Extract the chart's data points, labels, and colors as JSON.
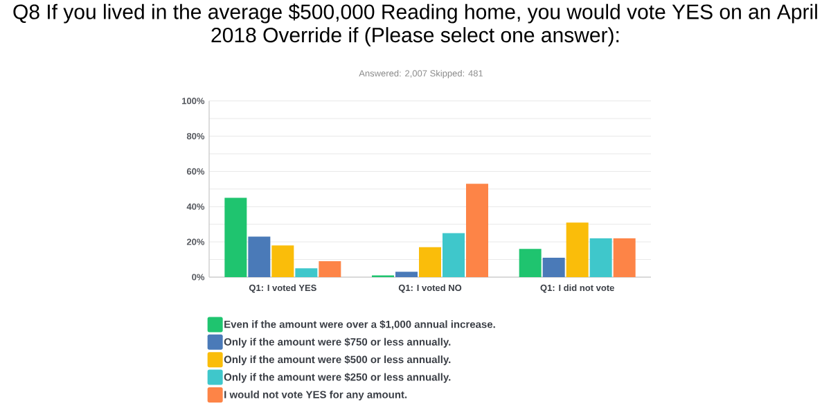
{
  "chart_data": {
    "type": "bar",
    "title": "Q8 If you lived in the average $500,000 Reading home, you would vote YES on an April 2018 Override if (Please select one answer):",
    "subtitle": "Answered: 2,007 Skipped: 481",
    "categories": [
      "Q1: I voted YES",
      "Q1: I voted NO",
      "Q1: I did not vote"
    ],
    "series": [
      {
        "name": "Even if the amount were over a $1,000 annual increase.",
        "color": "#1fc46f",
        "values": [
          45,
          1,
          16
        ]
      },
      {
        "name": "Only if the amount were $750 or less annually.",
        "color": "#4a7ab8",
        "values": [
          23,
          3,
          11
        ]
      },
      {
        "name": "Only if the amount were $500 or less annually.",
        "color": "#fabd0a",
        "values": [
          18,
          17,
          31
        ]
      },
      {
        "name": "Only if the amount were $250 or less annually.",
        "color": "#3fc7cb",
        "values": [
          5,
          25,
          22
        ]
      },
      {
        "name": "I would not vote YES for any amount.",
        "color": "#fd8447",
        "values": [
          9,
          53,
          22
        ]
      }
    ],
    "ylim": [
      0,
      100
    ],
    "yticks": [
      {
        "value": 0,
        "label": "0%"
      },
      {
        "value": 10,
        "label": null
      },
      {
        "value": 20,
        "label": "20%"
      },
      {
        "value": 30,
        "label": null
      },
      {
        "value": 40,
        "label": "40%"
      },
      {
        "value": 50,
        "label": null
      },
      {
        "value": 60,
        "label": "60%"
      },
      {
        "value": 70,
        "label": null
      },
      {
        "value": 80,
        "label": "80%"
      },
      {
        "value": 90,
        "label": null
      },
      {
        "value": 100,
        "label": "100%"
      }
    ],
    "grid": "y",
    "legend": "bottom"
  }
}
